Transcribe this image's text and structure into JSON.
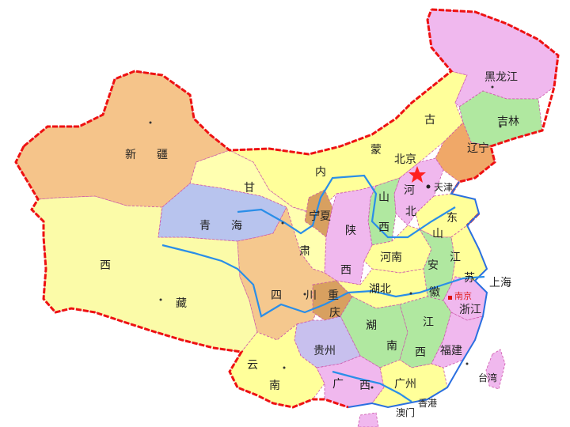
{
  "colors": {
    "xinjiang": "#f5c48a",
    "tibet": "#fbfba8",
    "qinghai": "#b8c4ee",
    "gansu": "#ffffb0",
    "neimenggu": "#ffff9a",
    "heilongjiang": "#f0b8ee",
    "jilin": "#b0e8a0",
    "liaoning": "#f0a868",
    "sichuan": "#f5c88e",
    "chongqing": "#d8a060",
    "ningxia": "#d8a060",
    "pink": "#f0b8ee",
    "green": "#b0e8a0",
    "yellow": "#ffff9a",
    "purple": "#c8c0ee",
    "border": "#ee1111",
    "river": "#2a8ee8",
    "star": "#ff2020"
  },
  "labels": {
    "heilongjiang": "黑龙江",
    "jilin": "吉林",
    "liaoning": "辽宁",
    "nei": "内",
    "meng": "蒙",
    "gu": "古",
    "beijing": "北京",
    "tianjin": "天津",
    "he_hebei": "河",
    "bei_hebei": "北",
    "shan_shanxi": "山",
    "xi_shanxi": "西",
    "shan_shandong": "山",
    "dong": "东",
    "xin": "新",
    "jiang_xj": "疆",
    "gan": "甘",
    "su_gansu": "肃",
    "qinghai": "青",
    "hai": "海",
    "ningxia": "宁夏",
    "shaan": "陕",
    "xi_shaanxi": "西",
    "henan": "河南",
    "an": "安",
    "hui": "徽",
    "jiang_js": "江",
    "su_js": "苏",
    "shanghai": "上海",
    "nanjing": "南京",
    "zhejiang": "浙江",
    "xi_tibet": "西",
    "zang": "藏",
    "si": "四",
    "chuan": "川",
    "chong": "重",
    "qing": "庆",
    "hubei": "湖北",
    "hu_hunan": "湖",
    "nan_hunan": "南",
    "jiang_jx": "江",
    "xi_jx": "西",
    "fujian": "福建",
    "guizhou": "贵州",
    "yun": "云",
    "nan_yn": "南",
    "guang_gx": "广",
    "xi_gx": "西",
    "guangzhou": "广州",
    "xianggang": "香港",
    "aomen": "澳门",
    "taiwan": "台湾"
  }
}
